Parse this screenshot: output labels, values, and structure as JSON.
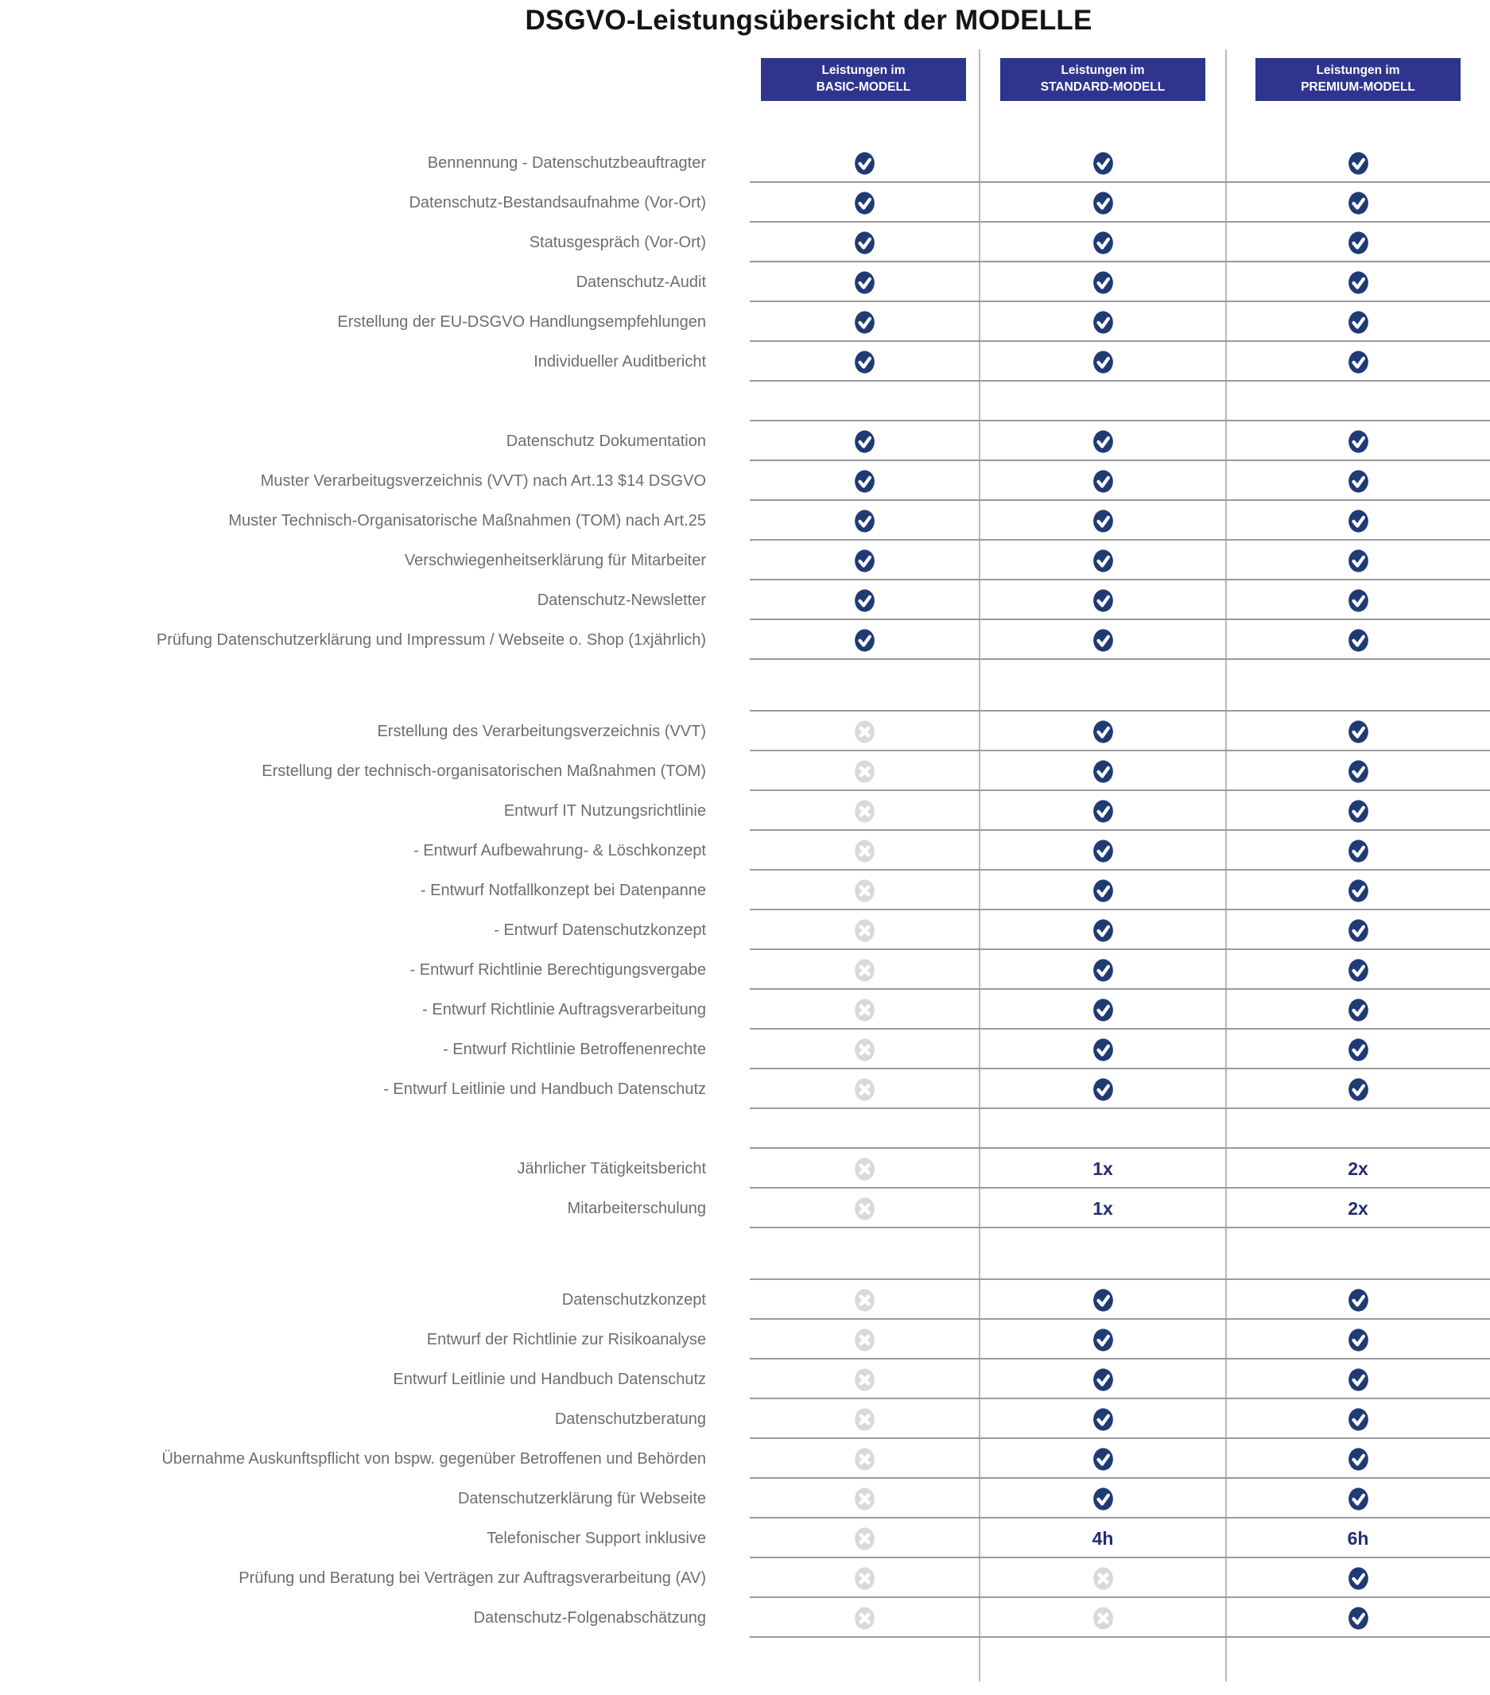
{
  "title": "DSGVO-Leistungsübersicht der MODELLE",
  "columns": [
    {
      "line1": "Leistungen im",
      "line2": "BASIC-MODELL"
    },
    {
      "line1": "Leistungen im",
      "line2": "STANDARD-MODELL"
    },
    {
      "line1": "Leistungen im",
      "line2": "PREMIUM-MODELL"
    }
  ],
  "colors": {
    "header_bg": "#2f348e",
    "check_circle": "#203a74",
    "cross_circle": "#d9d9d9",
    "value_text": "#232e72"
  },
  "rows": [
    {
      "label": "Bennennung - Datenschutzbeauftragter",
      "values": [
        "check",
        "check",
        "check"
      ]
    },
    {
      "label": "Datenschutz-Bestandsaufnahme (Vor-Ort)",
      "values": [
        "check",
        "check",
        "check"
      ]
    },
    {
      "label": "Statusgespräch (Vor-Ort)",
      "values": [
        "check",
        "check",
        "check"
      ]
    },
    {
      "label": "Datenschutz-Audit",
      "values": [
        "check",
        "check",
        "check"
      ]
    },
    {
      "label": "Erstellung der EU-DSGVO Handlungsempfehlungen",
      "values": [
        "check",
        "check",
        "check"
      ]
    },
    {
      "label": "Individueller Auditbericht",
      "values": [
        "check",
        "check",
        "check"
      ]
    },
    {
      "spacer": true
    },
    {
      "label": "Datenschutz Dokumentation",
      "values": [
        "check",
        "check",
        "check"
      ]
    },
    {
      "label": "Muster Verarbeitugsverzeichnis (VVT) nach Art.13 $14 DSGVO",
      "values": [
        "check",
        "check",
        "check"
      ]
    },
    {
      "label": "Muster Technisch-Organisatorische Maßnahmen (TOM) nach Art.25",
      "values": [
        "check",
        "check",
        "check"
      ]
    },
    {
      "label": "Verschwiegenheitserklärung für Mitarbeiter",
      "values": [
        "check",
        "check",
        "check"
      ]
    },
    {
      "label": "Datenschutz-Newsletter",
      "values": [
        "check",
        "check",
        "check"
      ]
    },
    {
      "label": "Prüfung Datenschutzerklärung und Impressum / Webseite o. Shop (1xjährlich)",
      "values": [
        "check",
        "check",
        "check"
      ]
    },
    {
      "spacer": true,
      "tall": true
    },
    {
      "label": "Erstellung des Verarbeitungsverzeichnis (VVT)",
      "values": [
        "cross",
        "check",
        "check"
      ]
    },
    {
      "label": "Erstellung der technisch-organisatorischen Maßnahmen (TOM)",
      "values": [
        "cross",
        "check",
        "check"
      ]
    },
    {
      "label": "Entwurf IT Nutzungsrichtlinie",
      "values": [
        "cross",
        "check",
        "check"
      ]
    },
    {
      "label": "- Entwurf Aufbewahrung- & Löschkonzept",
      "values": [
        "cross",
        "check",
        "check"
      ]
    },
    {
      "label": "- Entwurf Notfallkonzept bei Datenpanne",
      "values": [
        "cross",
        "check",
        "check"
      ]
    },
    {
      "label": "- Entwurf Datenschutzkonzept",
      "values": [
        "cross",
        "check",
        "check"
      ]
    },
    {
      "label": "- Entwurf Richtlinie Berechtigungsvergabe",
      "values": [
        "cross",
        "check",
        "check"
      ]
    },
    {
      "label": "- Entwurf Richtlinie Auftragsverarbeitung",
      "values": [
        "cross",
        "check",
        "check"
      ]
    },
    {
      "label": "- Entwurf Richtlinie Betroffenenrechte",
      "values": [
        "cross",
        "check",
        "check"
      ]
    },
    {
      "label": "- Entwurf Leitlinie und Handbuch Datenschutz",
      "values": [
        "cross",
        "check",
        "check"
      ]
    },
    {
      "spacer": true
    },
    {
      "label": "Jährlicher Tätigkeitsbericht",
      "values": [
        "cross",
        "1x",
        "2x"
      ]
    },
    {
      "label": "Mitarbeiterschulung",
      "values": [
        "cross",
        "1x",
        "2x"
      ]
    },
    {
      "spacer": true,
      "tall": true
    },
    {
      "label": "Datenschutzkonzept",
      "values": [
        "cross",
        "check",
        "check"
      ]
    },
    {
      "label": "Entwurf der Richtlinie zur Risikoanalyse",
      "values": [
        "cross",
        "check",
        "check"
      ]
    },
    {
      "label": "Entwurf Leitlinie und Handbuch Datenschutz",
      "values": [
        "cross",
        "check",
        "check"
      ]
    },
    {
      "label": "Datenschutzberatung",
      "values": [
        "cross",
        "check",
        "check"
      ]
    },
    {
      "label": "Übernahme Auskunftspflicht von bspw. gegenüber Betroffenen und Behörden",
      "values": [
        "cross",
        "check",
        "check"
      ]
    },
    {
      "label": "Datenschutzerklärung für Webseite",
      "values": [
        "cross",
        "check",
        "check"
      ]
    },
    {
      "label": "Telefonischer Support inklusive",
      "values": [
        "cross",
        "4h",
        "6h"
      ]
    },
    {
      "label": "Prüfung und Beratung bei Verträgen zur Auftragsverarbeitung (AV)",
      "values": [
        "cross",
        "cross",
        "check"
      ]
    },
    {
      "label": "Datenschutz-Folgenabschätzung",
      "values": [
        "cross",
        "cross",
        "check"
      ]
    },
    {
      "spacer": true,
      "end": true
    }
  ]
}
